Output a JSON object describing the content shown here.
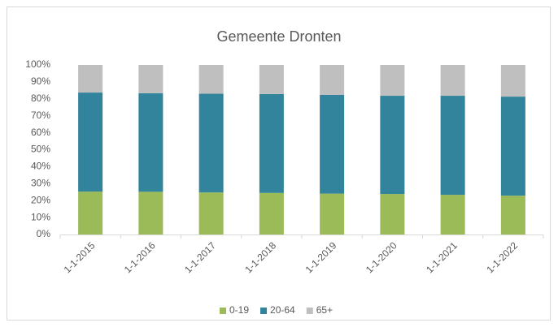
{
  "chart_data": {
    "type": "stacked_bar",
    "title": "Gemeente Dronten",
    "categories": [
      "1-1-2015",
      "1-1-2016",
      "1-1-2017",
      "1-1-2018",
      "1-1-2019",
      "1-1-2020",
      "1-1-2021",
      "1-1-2022"
    ],
    "series": [
      {
        "name": "0-19",
        "color": "#9bbb59",
        "values": [
          25.3,
          25.2,
          24.8,
          24.5,
          24.1,
          23.9,
          23.4,
          22.9
        ]
      },
      {
        "name": "20-64",
        "color": "#31849b",
        "values": [
          58.4,
          58.1,
          58.2,
          58.3,
          58.2,
          57.9,
          58.4,
          58.4
        ]
      },
      {
        "name": "65+",
        "color": "#bfbfbf",
        "values": [
          16.3,
          16.7,
          17.0,
          17.2,
          17.7,
          18.2,
          18.2,
          18.7
        ]
      }
    ],
    "ylim": [
      0,
      100
    ],
    "yticks": [
      {
        "value": 0,
        "label": "0%"
      },
      {
        "value": 10,
        "label": "10%"
      },
      {
        "value": 20,
        "label": "20%"
      },
      {
        "value": 30,
        "label": "30%"
      },
      {
        "value": 40,
        "label": "40%"
      },
      {
        "value": 50,
        "label": "50%"
      },
      {
        "value": 60,
        "label": "60%"
      },
      {
        "value": 70,
        "label": "70%"
      },
      {
        "value": 80,
        "label": "80%"
      },
      {
        "value": 90,
        "label": "90%"
      },
      {
        "value": 100,
        "label": "100%"
      }
    ],
    "grid": false,
    "legend": "bottom"
  }
}
